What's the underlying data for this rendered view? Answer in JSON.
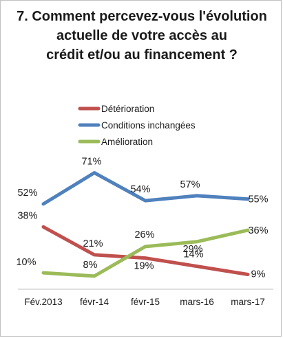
{
  "chart_data": {
    "type": "line",
    "title": "7. Comment percevez-vous l'évolution actuelle de votre accès au crédit et/ou au financement ?",
    "categories": [
      "Fév.2013",
      "févr-14",
      "févr-15",
      "mars-16",
      "mars-17"
    ],
    "series": [
      {
        "name": "Détérioration",
        "color": "#c0504d",
        "values": [
          38,
          21,
          19,
          14,
          9
        ],
        "labels": [
          "38%",
          "21%",
          "19%",
          "14%",
          "9%"
        ]
      },
      {
        "name": "Conditions inchangées",
        "color": "#4f81bd",
        "values": [
          52,
          71,
          54,
          57,
          55
        ],
        "labels": [
          "52%",
          "71%",
          "54%",
          "57%",
          "55%"
        ]
      },
      {
        "name": "Amélioration",
        "color": "#9bbb59",
        "values": [
          10,
          8,
          26,
          29,
          36
        ],
        "labels": [
          "10%",
          "8%",
          "26%",
          "29%",
          "36%"
        ]
      }
    ],
    "legend_position": "top-center",
    "grid": false,
    "ylim": [
      0,
      80
    ],
    "xlabel": "",
    "ylabel": ""
  }
}
